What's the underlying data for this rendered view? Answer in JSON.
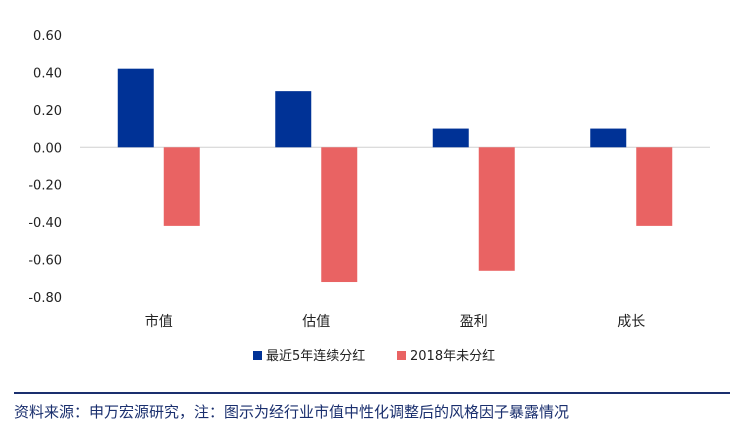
{
  "chart_data": {
    "type": "bar",
    "categories": [
      "市值",
      "估值",
      "盈利",
      "成长"
    ],
    "series": [
      {
        "name": "最近5年连续分红",
        "values": [
          0.42,
          0.3,
          0.1,
          0.1
        ],
        "color": "#003296"
      },
      {
        "name": "2018年未分红",
        "values": [
          -0.42,
          -0.72,
          -0.66,
          -0.42
        ],
        "color": "#E96363"
      }
    ],
    "ylim": [
      -0.8,
      0.6
    ],
    "yticks": [
      "0.60",
      "0.40",
      "0.20",
      "0.00",
      "-0.20",
      "-0.40",
      "-0.60",
      "-0.80"
    ],
    "ytick_values": [
      0.6,
      0.4,
      0.2,
      0.0,
      -0.2,
      -0.4,
      -0.6,
      -0.8
    ],
    "legend_position": "bottom",
    "grid": false
  },
  "source": "资料来源：申万宏源研究，注：图示为经行业市值中性化调整后的风格因子暴露情况"
}
